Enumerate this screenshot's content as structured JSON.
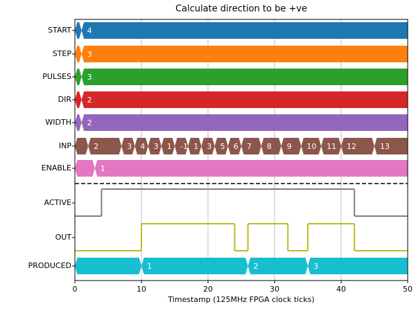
{
  "chart_data": {
    "type": "timing",
    "title": "Calculate direction to be +ve",
    "xlabel": "Timestamp (125MHz FPGA clock ticks)",
    "xlim": [
      0,
      50
    ],
    "xticks": [
      0,
      10,
      20,
      30,
      40,
      50
    ],
    "grid": true,
    "signals": [
      {
        "name": "START",
        "kind": "bus",
        "color": "#1f77b4",
        "times": [
          0,
          1
        ],
        "values": [
          null,
          4
        ]
      },
      {
        "name": "STEP",
        "kind": "bus",
        "color": "#ff7f0e",
        "times": [
          0,
          1
        ],
        "values": [
          null,
          3
        ]
      },
      {
        "name": "PULSES",
        "kind": "bus",
        "color": "#2ca02c",
        "times": [
          0,
          1
        ],
        "values": [
          null,
          3
        ]
      },
      {
        "name": "DIR",
        "kind": "bus",
        "color": "#d62728",
        "times": [
          0,
          1
        ],
        "values": [
          null,
          2
        ]
      },
      {
        "name": "WIDTH",
        "kind": "bus",
        "color": "#9467bd",
        "times": [
          0,
          1
        ],
        "values": [
          null,
          2
        ]
      },
      {
        "name": "INP",
        "kind": "bus",
        "color": "#8c564b",
        "times": [
          0,
          2,
          7,
          9,
          11,
          13,
          15,
          17,
          19,
          21,
          23,
          25,
          28,
          31,
          34,
          37,
          40,
          45
        ],
        "values": [
          null,
          2,
          3,
          4,
          3,
          1,
          -1,
          1,
          3,
          5,
          6,
          7,
          8,
          9,
          10,
          11,
          12,
          13
        ]
      },
      {
        "name": "ENABLE",
        "kind": "bus",
        "color": "#e377c2",
        "times": [
          0,
          3
        ],
        "values": [
          null,
          1
        ]
      },
      {
        "name": "ACTIVE",
        "kind": "bit",
        "color": "#7f7f7f",
        "times": [
          0,
          4,
          42
        ],
        "values": [
          0,
          1,
          0
        ]
      },
      {
        "name": "OUT",
        "kind": "bit",
        "color": "#bcbd22",
        "times": [
          0,
          10,
          24,
          26,
          32,
          35,
          42
        ],
        "values": [
          0,
          1,
          0,
          1,
          0,
          1,
          0
        ]
      },
      {
        "name": "PRODUCED",
        "kind": "bus",
        "color": "#17becf",
        "times": [
          0,
          10,
          26,
          35
        ],
        "values": [
          null,
          1,
          2,
          3
        ]
      }
    ]
  }
}
